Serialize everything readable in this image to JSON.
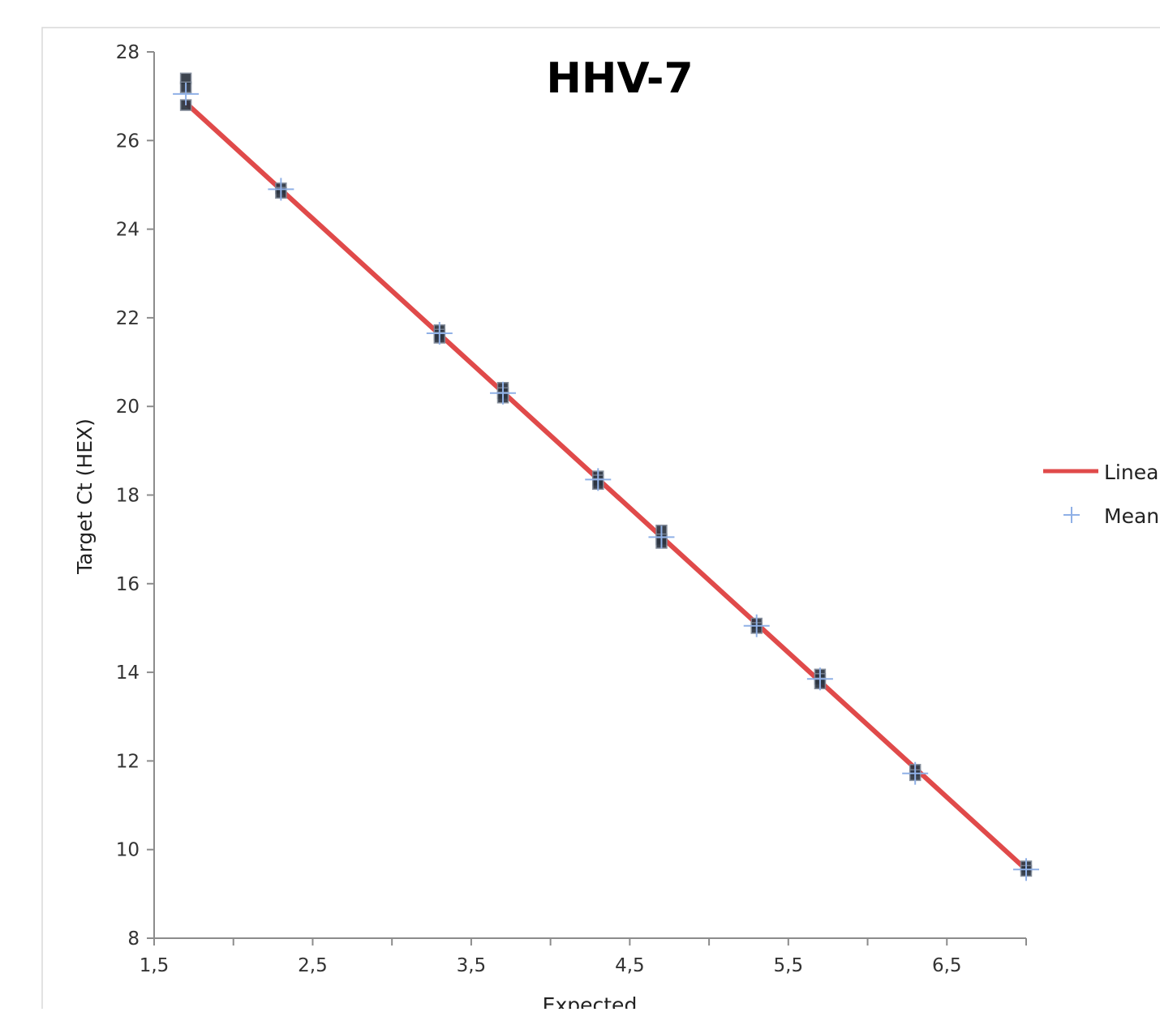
{
  "chart_data": {
    "type": "scatter",
    "title": "HHV-7",
    "xlabel": "Expected",
    "ylabel": "Target Ct (HEX)",
    "xlim": [
      1.5,
      7.0
    ],
    "ylim": [
      8,
      28
    ],
    "x_ticks": [
      1.5,
      2.0,
      2.5,
      3.0,
      3.5,
      4.0,
      4.5,
      5.0,
      5.5,
      6.0,
      6.5,
      7.0
    ],
    "x_tick_labels": [
      "1,5",
      "",
      "2,5",
      "",
      "3,5",
      "",
      "4,5",
      "",
      "5,5",
      "",
      "6,5",
      ""
    ],
    "y_ticks": [
      8,
      10,
      12,
      14,
      16,
      18,
      20,
      22,
      24,
      26,
      28
    ],
    "y_tick_labels": [
      "8",
      "10",
      "12",
      "14",
      "16",
      "18",
      "20",
      "22",
      "24",
      "26",
      "28"
    ],
    "grid": false,
    "legend_position": "right",
    "legend": [
      {
        "label": "Linear",
        "marker": "line",
        "color": "#e04a4a"
      },
      {
        "label": "Mean",
        "marker": "plus",
        "color": "#8fb0e6"
      }
    ],
    "series": [
      {
        "name": "Linear",
        "kind": "line",
        "color": "#e04a4a",
        "x": [
          1.7,
          7.0
        ],
        "y": [
          26.85,
          9.55
        ]
      },
      {
        "name": "Mean",
        "kind": "plus",
        "color": "#8fb0e6",
        "x": [
          1.7,
          2.3,
          3.3,
          3.7,
          4.3,
          4.7,
          5.3,
          5.7,
          6.3,
          7.0
        ],
        "y": [
          27.05,
          24.9,
          21.65,
          20.3,
          18.35,
          17.05,
          15.05,
          13.85,
          11.72,
          9.55
        ]
      },
      {
        "kind": "square",
        "color": "#2c3440",
        "x": [
          1.7,
          1.7,
          1.7,
          2.3,
          2.3,
          3.3,
          3.3,
          3.3,
          3.7,
          3.7,
          3.7,
          4.3,
          4.3,
          4.3,
          4.7,
          4.7,
          4.7,
          5.3,
          5.3,
          5.7,
          5.7,
          5.7,
          6.3,
          6.3,
          7.0,
          7.0
        ],
        "y": [
          27.4,
          27.2,
          26.8,
          24.92,
          24.82,
          21.72,
          21.62,
          21.55,
          20.42,
          20.3,
          20.2,
          18.42,
          18.33,
          18.25,
          17.2,
          17.0,
          16.92,
          15.1,
          15.0,
          13.95,
          13.85,
          13.75,
          11.8,
          11.68,
          9.62,
          9.52
        ]
      }
    ]
  }
}
